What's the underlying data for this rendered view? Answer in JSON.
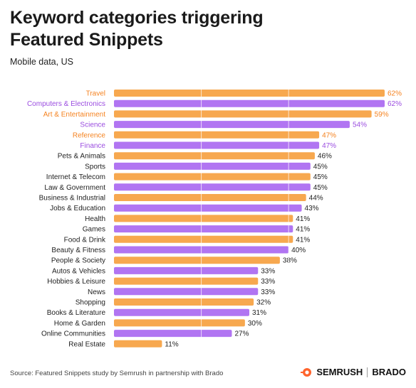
{
  "title_line1": "Keyword categories triggering",
  "title_line2": "Featured Snippets",
  "subtitle": "Mobile data, US",
  "source": "Source: Featured Snippets study by Semrush in partnership with Brado",
  "logos": {
    "semrush": "SEMRUSH",
    "brado": "BRADO"
  },
  "colors": {
    "orange": "#F7A84F",
    "purple": "#B175F2",
    "label_orange": "#F5821F",
    "label_purple": "#9B4DE0",
    "label_default": "#222222"
  },
  "chart_data": {
    "type": "bar",
    "orientation": "horizontal",
    "categories": [
      "Travel",
      "Computers & Electronics",
      "Art & Entertainment",
      "Science",
      "Reference",
      "Finance",
      "Pets & Animals",
      "Sports",
      "Internet & Telecom",
      "Law & Government",
      "Business & Industrial",
      "Jobs & Education",
      "Health",
      "Games",
      "Food & Drink",
      "Beauty & Fitness",
      "People & Society",
      "Autos & Vehicles",
      "Hobbies & Leisure",
      "News",
      "Shopping",
      "Books & Literature",
      "Home & Garden",
      "Online Communities",
      "Real Estate"
    ],
    "values": [
      62,
      62,
      59,
      54,
      47,
      47,
      46,
      45,
      45,
      45,
      44,
      43,
      41,
      41,
      41,
      40,
      38,
      33,
      33,
      33,
      32,
      31,
      30,
      27,
      11
    ],
    "value_suffix": "%",
    "bar_colors": [
      "orange",
      "purple",
      "orange",
      "purple",
      "orange",
      "purple",
      "orange",
      "purple",
      "orange",
      "purple",
      "orange",
      "purple",
      "orange",
      "purple",
      "orange",
      "purple",
      "orange",
      "purple",
      "orange",
      "purple",
      "orange",
      "purple",
      "orange",
      "purple",
      "orange"
    ],
    "highlighted_count": 6,
    "xlim": [
      0,
      62
    ],
    "grid": true
  }
}
